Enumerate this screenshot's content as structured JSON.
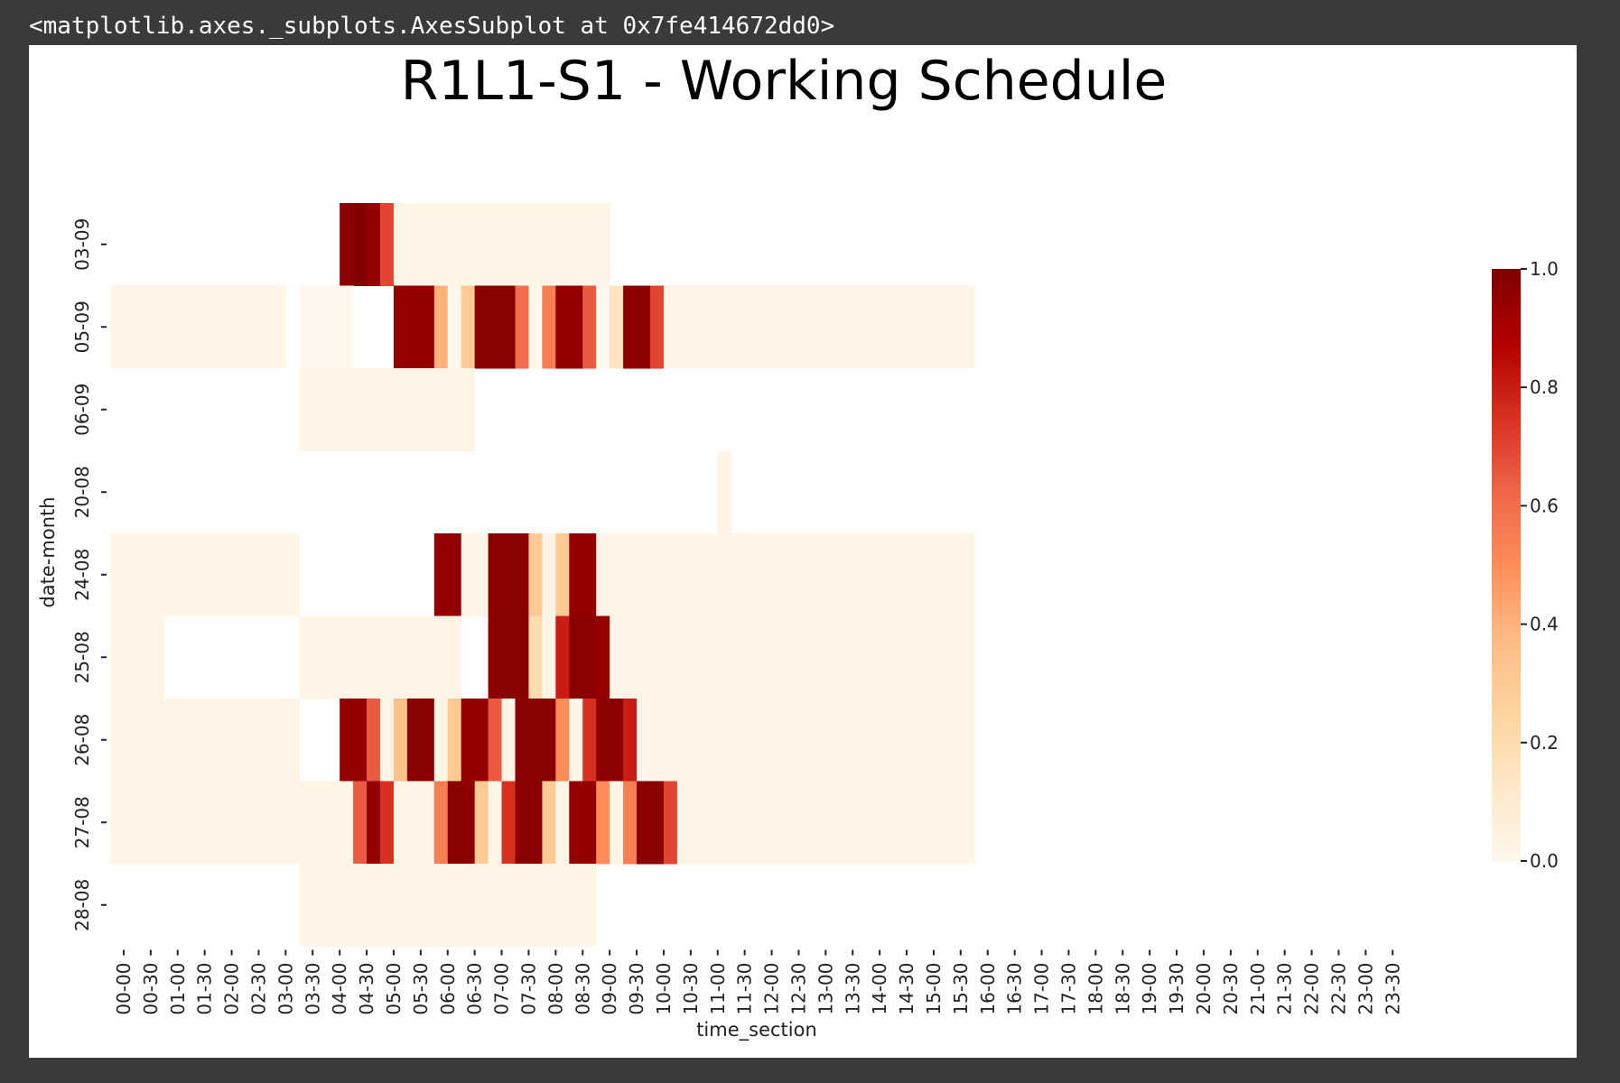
{
  "header": {
    "text": "<matplotlib.axes._subplots.AxesSubplot at 0x7fe414672dd0>"
  },
  "chart_data": {
    "type": "heatmap",
    "title": "R1L1-S1 - Working Schedule",
    "xlabel": "time_section",
    "ylabel": "date-month",
    "x_categories": [
      "00-00",
      "00-30",
      "01-00",
      "01-30",
      "02-00",
      "02-30",
      "03-00",
      "03-30",
      "04-00",
      "04-30",
      "05-00",
      "05-30",
      "06-00",
      "06-30",
      "07-00",
      "07-30",
      "08-00",
      "08-30",
      "09-00",
      "09-30",
      "10-00",
      "10-30",
      "11-00",
      "11-30",
      "12-00",
      "12-30",
      "13-00",
      "13-30",
      "14-00",
      "14-30",
      "15-00",
      "15-30",
      "16-00",
      "16-30",
      "17-00",
      "17-30",
      "18-00",
      "18-30",
      "19-00",
      "19-30",
      "20-00",
      "20-30",
      "21-00",
      "21-30",
      "22-00",
      "22-30",
      "23-00",
      "23-30"
    ],
    "y_categories": [
      "03-09",
      "05-09",
      "06-09",
      "20-08",
      "24-08",
      "25-08",
      "26-08",
      "27-08",
      "28-08"
    ],
    "cell_width_in_half_slots": 0.5,
    "rows": [
      {
        "date": "03-09",
        "cells": [
          [
            17,
            18,
            0.97
          ],
          [
            18,
            19,
            0.99
          ],
          [
            19,
            20,
            0.95
          ],
          [
            20,
            21,
            0.7
          ],
          [
            21,
            37,
            0.02
          ]
        ]
      },
      {
        "date": "05-09",
        "cells": [
          [
            0,
            13,
            0.02
          ],
          [
            14,
            15,
            0
          ],
          [
            15,
            18,
            0
          ],
          [
            21,
            24,
            0.95
          ],
          [
            24,
            25,
            0.4
          ],
          [
            25,
            26,
            0
          ],
          [
            26,
            27,
            0.3
          ],
          [
            27,
            30,
            0.97
          ],
          [
            30,
            31,
            0.6
          ],
          [
            31,
            32,
            0
          ],
          [
            32,
            33,
            0.55
          ],
          [
            33,
            35,
            0.95
          ],
          [
            35,
            36,
            0.65
          ],
          [
            36,
            37,
            0
          ],
          [
            37,
            38,
            0.15
          ],
          [
            38,
            40,
            0.97
          ],
          [
            40,
            41,
            0.7
          ],
          [
            41,
            64,
            0.02
          ]
        ]
      },
      {
        "date": "06-09",
        "cells": [
          [
            14,
            27,
            0.02
          ]
        ]
      },
      {
        "date": "20-08",
        "cells": [
          [
            45,
            46,
            0.02
          ]
        ]
      },
      {
        "date": "24-08",
        "cells": [
          [
            0,
            14,
            0.02
          ],
          [
            24,
            26,
            0.95
          ],
          [
            26,
            28,
            0.02
          ],
          [
            28,
            31,
            0.97
          ],
          [
            31,
            32,
            0.3
          ],
          [
            32,
            33,
            0.02
          ],
          [
            33,
            34,
            0.3
          ],
          [
            34,
            36,
            0.95
          ],
          [
            36,
            64,
            0.02
          ]
        ]
      },
      {
        "date": "25-08",
        "cells": [
          [
            0,
            4,
            0.02
          ],
          [
            14,
            26,
            0.02
          ],
          [
            28,
            31,
            0.97
          ],
          [
            31,
            32,
            0.2
          ],
          [
            32,
            33,
            0.02
          ],
          [
            33,
            34,
            0.8
          ],
          [
            34,
            36,
            0.97
          ],
          [
            36,
            37,
            0.95
          ],
          [
            37,
            64,
            0.02
          ]
        ]
      },
      {
        "date": "26-08",
        "cells": [
          [
            0,
            14,
            0.02
          ],
          [
            17,
            19,
            0.95
          ],
          [
            19,
            20,
            0.65
          ],
          [
            20,
            21,
            0.02
          ],
          [
            21,
            22,
            0.35
          ],
          [
            22,
            24,
            0.97
          ],
          [
            24,
            25,
            0.02
          ],
          [
            25,
            26,
            0.3
          ],
          [
            26,
            28,
            0.95
          ],
          [
            28,
            29,
            0.65
          ],
          [
            29,
            30,
            0.02
          ],
          [
            30,
            33,
            0.97
          ],
          [
            33,
            34,
            0.5
          ],
          [
            34,
            35,
            0.02
          ],
          [
            35,
            36,
            0.75
          ],
          [
            36,
            38,
            0.97
          ],
          [
            38,
            39,
            0.8
          ],
          [
            39,
            64,
            0.02
          ]
        ]
      },
      {
        "date": "27-08",
        "cells": [
          [
            0,
            18,
            0.02
          ],
          [
            18,
            19,
            0.65
          ],
          [
            19,
            20,
            0.95
          ],
          [
            20,
            21,
            0.75
          ],
          [
            21,
            24,
            0.02
          ],
          [
            24,
            25,
            0.55
          ],
          [
            25,
            27,
            0.97
          ],
          [
            27,
            28,
            0.3
          ],
          [
            28,
            29,
            0.02
          ],
          [
            29,
            30,
            0.75
          ],
          [
            30,
            32,
            0.97
          ],
          [
            32,
            33,
            0.3
          ],
          [
            33,
            34,
            0.02
          ],
          [
            34,
            36,
            0.95
          ],
          [
            36,
            37,
            0.5
          ],
          [
            37,
            38,
            0.02
          ],
          [
            38,
            39,
            0.55
          ],
          [
            39,
            41,
            0.97
          ],
          [
            41,
            42,
            0.7
          ],
          [
            42,
            64,
            0.02
          ]
        ]
      },
      {
        "date": "28-08",
        "cells": [
          [
            14,
            36,
            0.02
          ]
        ]
      }
    ],
    "colorbar": {
      "min": 0.0,
      "max": 1.0,
      "ticks": [
        "0.0",
        "0.2",
        "0.4",
        "0.6",
        "0.8",
        "1.0"
      ]
    },
    "colormap": "OrRd"
  }
}
